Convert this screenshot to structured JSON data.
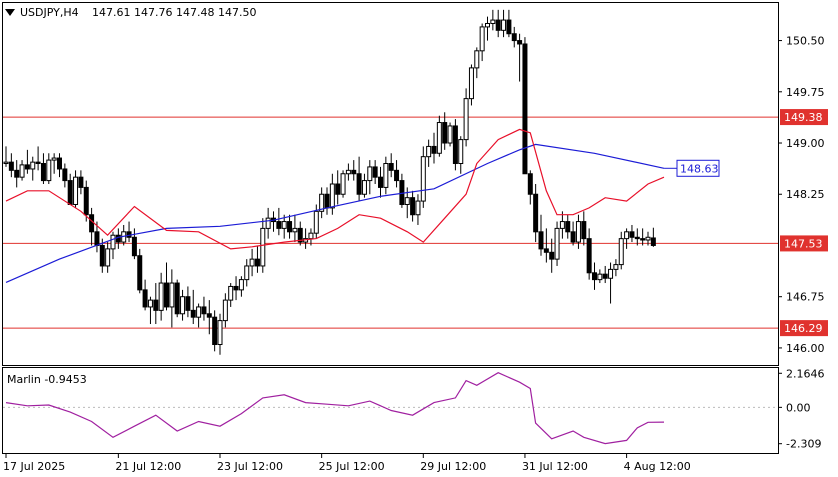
{
  "header": {
    "menu_icon": "triangle-down-icon",
    "symbol": "USDJPY,H4",
    "ohlc": "147.61 147.76 147.48 147.50"
  },
  "chart_data": {
    "type": "candlestick",
    "symbol": "USDJPY",
    "timeframe": "H4",
    "ylim": [
      145.75,
      151.05
    ],
    "y_ticks": [
      "150.50",
      "149.75",
      "149.00",
      "148.25",
      "146.75",
      "146.00"
    ],
    "x_ticks": [
      "17 Jul 2025",
      "21 Jul 12:00",
      "23 Jul 12:00",
      "25 Jul 12:00",
      "29 Jul 12:00",
      "31 Jul 12:00",
      "4 Aug 12:00"
    ],
    "x_tick_bar_index": [
      0,
      21,
      40,
      59,
      78,
      97,
      116
    ],
    "grid": false,
    "colors": {
      "bull_body": "#ffffff",
      "bear_body": "#000000",
      "moving_average_slow": "#1c1cd6",
      "moving_average_fast": "#e8102a",
      "level_line": "#e0322e",
      "oscillator": "#a020a0"
    },
    "candles": [
      [
        148.7,
        148.95,
        148.65,
        148.72
      ],
      [
        148.72,
        148.85,
        148.5,
        148.6
      ],
      [
        148.6,
        148.75,
        148.35,
        148.5
      ],
      [
        148.5,
        148.75,
        148.45,
        148.68
      ],
      [
        148.68,
        148.9,
        148.55,
        148.62
      ],
      [
        148.62,
        148.8,
        148.45,
        148.72
      ],
      [
        148.72,
        148.95,
        148.6,
        148.7
      ],
      [
        148.7,
        148.85,
        148.4,
        148.45
      ],
      [
        148.45,
        148.85,
        148.4,
        148.75
      ],
      [
        148.75,
        148.85,
        148.55,
        148.78
      ],
      [
        148.78,
        148.85,
        148.5,
        148.62
      ],
      [
        148.62,
        148.7,
        148.35,
        148.45
      ],
      [
        148.45,
        148.55,
        148.1,
        148.1
      ],
      [
        148.1,
        148.6,
        148.05,
        148.5
      ],
      [
        148.5,
        148.6,
        148.25,
        148.35
      ],
      [
        148.35,
        148.45,
        147.85,
        147.95
      ],
      [
        147.95,
        148.05,
        147.5,
        147.7
      ],
      [
        147.7,
        147.85,
        147.4,
        147.5
      ],
      [
        147.5,
        147.6,
        147.1,
        147.2
      ],
      [
        147.2,
        147.55,
        147.1,
        147.45
      ],
      [
        147.45,
        147.7,
        147.3,
        147.65
      ],
      [
        147.65,
        147.75,
        147.45,
        147.55
      ],
      [
        147.55,
        147.8,
        147.5,
        147.7
      ],
      [
        147.7,
        147.85,
        147.55,
        147.62
      ],
      [
        147.62,
        147.75,
        147.3,
        147.35
      ],
      [
        147.35,
        147.45,
        146.8,
        146.85
      ],
      [
        146.85,
        147.0,
        146.55,
        146.6
      ],
      [
        146.6,
        146.75,
        146.35,
        146.7
      ],
      [
        146.7,
        146.95,
        146.35,
        146.55
      ],
      [
        146.55,
        147.1,
        146.4,
        146.95
      ],
      [
        146.95,
        147.25,
        146.55,
        146.6
      ],
      [
        146.6,
        147.15,
        146.3,
        146.95
      ],
      [
        146.95,
        147.0,
        146.45,
        146.5
      ],
      [
        146.5,
        146.85,
        146.4,
        146.75
      ],
      [
        146.75,
        146.9,
        146.45,
        146.55
      ],
      [
        146.55,
        146.85,
        146.35,
        146.45
      ],
      [
        146.45,
        146.65,
        146.3,
        146.6
      ],
      [
        146.6,
        146.75,
        146.4,
        146.5
      ],
      [
        146.5,
        146.7,
        146.2,
        146.45
      ],
      [
        146.45,
        146.55,
        145.95,
        146.05
      ],
      [
        146.05,
        146.5,
        145.9,
        146.4
      ],
      [
        146.4,
        146.8,
        146.3,
        146.7
      ],
      [
        146.7,
        146.95,
        146.6,
        146.9
      ],
      [
        146.9,
        147.05,
        146.7,
        146.85
      ],
      [
        146.85,
        147.05,
        146.75,
        147.0
      ],
      [
        147.0,
        147.3,
        146.9,
        147.2
      ],
      [
        147.2,
        147.45,
        147.05,
        147.3
      ],
      [
        147.3,
        147.5,
        147.1,
        147.2
      ],
      [
        147.2,
        147.9,
        147.1,
        147.75
      ],
      [
        147.75,
        148.05,
        147.6,
        147.9
      ],
      [
        147.9,
        148.0,
        147.7,
        147.85
      ],
      [
        147.85,
        148.05,
        147.65,
        147.75
      ],
      [
        147.75,
        147.95,
        147.6,
        147.85
      ],
      [
        147.85,
        147.95,
        147.6,
        147.7
      ],
      [
        147.7,
        147.95,
        147.55,
        147.75
      ],
      [
        147.75,
        147.85,
        147.5,
        147.55
      ],
      [
        147.55,
        147.75,
        147.45,
        147.6
      ],
      [
        147.6,
        147.75,
        147.5,
        147.68
      ],
      [
        147.68,
        148.1,
        147.6,
        148.0
      ],
      [
        148.0,
        148.35,
        147.9,
        148.25
      ],
      [
        148.25,
        148.35,
        147.95,
        148.05
      ],
      [
        148.05,
        148.55,
        147.95,
        148.4
      ],
      [
        148.4,
        148.6,
        148.1,
        148.25
      ],
      [
        148.25,
        148.6,
        148.2,
        148.55
      ],
      [
        148.55,
        148.7,
        148.45,
        148.6
      ],
      [
        148.6,
        148.75,
        148.45,
        148.55
      ],
      [
        148.55,
        148.8,
        148.15,
        148.25
      ],
      [
        148.25,
        148.55,
        148.2,
        148.45
      ],
      [
        148.45,
        148.75,
        148.25,
        148.65
      ],
      [
        148.65,
        148.75,
        148.4,
        148.5
      ],
      [
        148.5,
        148.65,
        148.2,
        148.35
      ],
      [
        148.35,
        148.8,
        148.25,
        148.7
      ],
      [
        148.7,
        148.85,
        148.5,
        148.6
      ],
      [
        148.6,
        148.75,
        148.35,
        148.45
      ],
      [
        148.45,
        148.55,
        148.05,
        148.1
      ],
      [
        148.1,
        148.35,
        147.9,
        148.2
      ],
      [
        148.2,
        148.3,
        147.85,
        147.95
      ],
      [
        147.95,
        148.25,
        147.8,
        148.15
      ],
      [
        148.15,
        148.95,
        148.05,
        148.8
      ],
      [
        148.8,
        149.05,
        148.65,
        148.95
      ],
      [
        148.95,
        149.15,
        148.7,
        148.85
      ],
      [
        148.85,
        149.4,
        148.8,
        149.3
      ],
      [
        149.3,
        149.45,
        148.9,
        149.0
      ],
      [
        149.0,
        149.3,
        148.95,
        149.25
      ],
      [
        149.25,
        149.35,
        148.6,
        148.7
      ],
      [
        148.7,
        149.1,
        148.55,
        149.05
      ],
      [
        149.05,
        149.8,
        148.95,
        149.65
      ],
      [
        149.65,
        150.15,
        149.55,
        150.1
      ],
      [
        150.1,
        150.4,
        149.95,
        150.35
      ],
      [
        150.35,
        150.75,
        150.2,
        150.7
      ],
      [
        150.7,
        150.85,
        150.5,
        150.75
      ],
      [
        150.75,
        150.95,
        150.65,
        150.8
      ],
      [
        150.8,
        150.95,
        150.55,
        150.65
      ],
      [
        150.65,
        150.95,
        150.55,
        150.8
      ],
      [
        150.8,
        150.95,
        150.55,
        150.6
      ],
      [
        150.6,
        150.7,
        150.4,
        150.5
      ],
      [
        150.5,
        150.6,
        149.9,
        150.45
      ],
      [
        150.45,
        150.55,
        148.55,
        148.55
      ],
      [
        148.55,
        148.6,
        148.1,
        148.25
      ],
      [
        148.25,
        148.4,
        147.55,
        147.7
      ],
      [
        147.7,
        147.95,
        147.35,
        147.45
      ],
      [
        147.45,
        147.75,
        147.25,
        147.4
      ],
      [
        147.4,
        147.6,
        147.1,
        147.3
      ],
      [
        147.3,
        147.85,
        147.2,
        147.75
      ],
      [
        147.75,
        148.0,
        147.6,
        147.85
      ],
      [
        147.85,
        147.95,
        147.6,
        147.7
      ],
      [
        147.7,
        147.85,
        147.5,
        147.55
      ],
      [
        147.55,
        147.95,
        147.45,
        147.85
      ],
      [
        147.85,
        148.0,
        147.5,
        147.6
      ],
      [
        147.6,
        147.75,
        147.0,
        147.1
      ],
      [
        147.1,
        147.25,
        146.85,
        147.0
      ],
      [
        147.0,
        147.15,
        146.95,
        147.08
      ],
      [
        147.08,
        147.2,
        146.95,
        147.02
      ],
      [
        147.02,
        147.25,
        146.65,
        147.15
      ],
      [
        147.15,
        147.3,
        147.05,
        147.22
      ],
      [
        147.22,
        147.7,
        147.15,
        147.6
      ],
      [
        147.6,
        147.75,
        147.45,
        147.7
      ],
      [
        147.7,
        147.8,
        147.55,
        147.62
      ],
      [
        147.62,
        147.75,
        147.5,
        147.6
      ],
      [
        147.6,
        147.75,
        147.5,
        147.58
      ],
      [
        147.58,
        147.7,
        147.5,
        147.62
      ],
      [
        147.61,
        147.76,
        147.48,
        147.5
      ]
    ],
    "moving_average_slow": [
      [
        0,
        146.96
      ],
      [
        10,
        147.3
      ],
      [
        21,
        147.62
      ],
      [
        30,
        147.75
      ],
      [
        40,
        147.78
      ],
      [
        50,
        147.87
      ],
      [
        60,
        148.05
      ],
      [
        70,
        148.22
      ],
      [
        80,
        148.33
      ],
      [
        90,
        148.7
      ],
      [
        96,
        148.9
      ],
      [
        99,
        148.98
      ],
      [
        110,
        148.85
      ],
      [
        123,
        148.63
      ]
    ],
    "moving_average_fast": [
      [
        0,
        148.15
      ],
      [
        4,
        148.3
      ],
      [
        8,
        148.3
      ],
      [
        14,
        148.0
      ],
      [
        19,
        147.65
      ],
      [
        24,
        148.07
      ],
      [
        30,
        147.72
      ],
      [
        36,
        147.7
      ],
      [
        42,
        147.45
      ],
      [
        46,
        147.48
      ],
      [
        52,
        147.55
      ],
      [
        58,
        147.6
      ],
      [
        62,
        147.75
      ],
      [
        66,
        147.95
      ],
      [
        70,
        147.9
      ],
      [
        75,
        147.7
      ],
      [
        78,
        147.55
      ],
      [
        82,
        147.9
      ],
      [
        86,
        148.25
      ],
      [
        88,
        148.7
      ],
      [
        92,
        149.05
      ],
      [
        96,
        149.2
      ],
      [
        98,
        149.15
      ],
      [
        101,
        148.3
      ],
      [
        103,
        147.95
      ],
      [
        106,
        147.95
      ],
      [
        109,
        148.05
      ],
      [
        112,
        148.2
      ],
      [
        116,
        148.15
      ],
      [
        120,
        148.4
      ],
      [
        123,
        148.5
      ]
    ],
    "levels": [
      {
        "value": 149.38,
        "label": "149.38"
      },
      {
        "value": 147.53,
        "label": "147.53"
      },
      {
        "value": 146.29,
        "label": "146.29"
      }
    ],
    "ma_label": "148.63",
    "indicator": {
      "name": "Marlin -0.9453",
      "ylim": [
        -2.9,
        2.5
      ],
      "y_ticks": [
        "2.1646",
        "0.00",
        "-2.309"
      ],
      "zero_line": 0,
      "values": [
        [
          0,
          0.3
        ],
        [
          4,
          0.1
        ],
        [
          8,
          0.15
        ],
        [
          12,
          -0.3
        ],
        [
          16,
          -0.9
        ],
        [
          20,
          -1.9
        ],
        [
          24,
          -1.2
        ],
        [
          28,
          -0.5
        ],
        [
          32,
          -1.5
        ],
        [
          36,
          -0.9
        ],
        [
          40,
          -1.2
        ],
        [
          44,
          -0.4
        ],
        [
          48,
          0.6
        ],
        [
          52,
          0.8
        ],
        [
          56,
          0.3
        ],
        [
          60,
          0.2
        ],
        [
          64,
          0.1
        ],
        [
          68,
          0.4
        ],
        [
          72,
          -0.2
        ],
        [
          76,
          -0.5
        ],
        [
          80,
          0.3
        ],
        [
          84,
          0.6
        ],
        [
          86,
          1.7
        ],
        [
          88,
          1.4
        ],
        [
          92,
          2.2
        ],
        [
          96,
          1.6
        ],
        [
          98,
          1.2
        ],
        [
          99,
          -1.0
        ],
        [
          102,
          -2.0
        ],
        [
          106,
          -1.5
        ],
        [
          108,
          -1.9
        ],
        [
          112,
          -2.3
        ],
        [
          116,
          -2.1
        ],
        [
          118,
          -1.3
        ],
        [
          120,
          -0.95
        ],
        [
          123,
          -0.94
        ]
      ]
    }
  }
}
